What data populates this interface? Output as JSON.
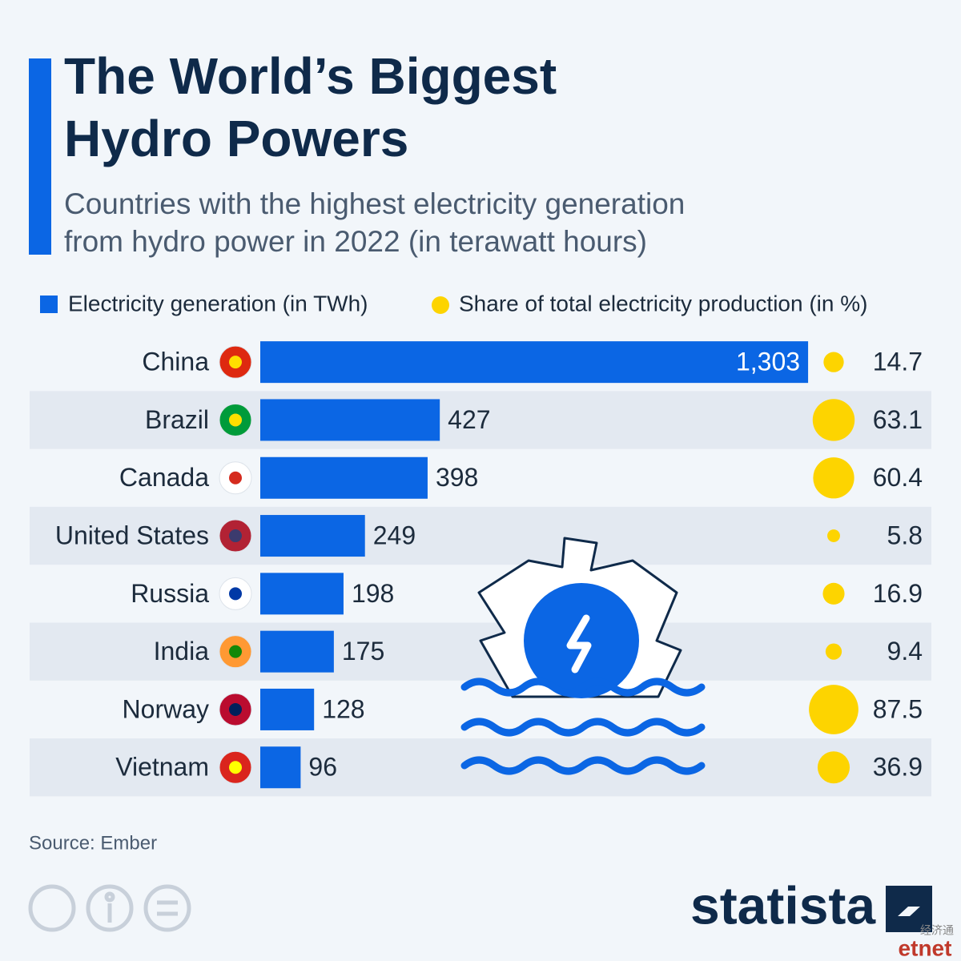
{
  "chart_data": {
    "type": "bar",
    "title": [
      "The World’s Biggest",
      "Hydro Powers"
    ],
    "subtitle": [
      "Countries with the highest electricity generation",
      "from hydro power in 2022 (in terawatt hours)"
    ],
    "categories": [
      "China",
      "Brazil",
      "Canada",
      "United States",
      "Russia",
      "India",
      "Norway",
      "Vietnam"
    ],
    "series": [
      {
        "name": "Electricity generation (in TWh)",
        "color": "#0b66e4",
        "values": [
          1303,
          427,
          398,
          249,
          198,
          175,
          128,
          96
        ],
        "value_labels": [
          "1,303",
          "427",
          "398",
          "249",
          "198",
          "175",
          "128",
          "96"
        ]
      },
      {
        "name": "Share of total electricity production (in %)",
        "color": "#fdd400",
        "values": [
          14.7,
          63.1,
          60.4,
          5.8,
          16.9,
          9.4,
          87.5,
          36.9
        ]
      }
    ],
    "source": "Source: Ember",
    "brand": "statista",
    "watermark": [
      "经济通",
      "etnet"
    ]
  }
}
